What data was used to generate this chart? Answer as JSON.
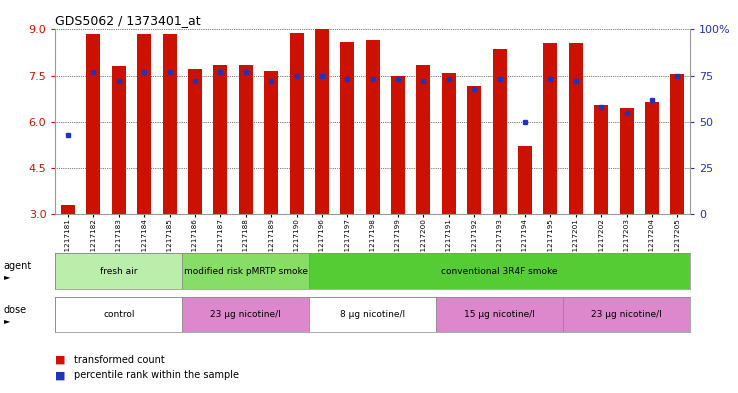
{
  "title": "GDS5062 / 1373401_at",
  "samples": [
    "GSM1217181",
    "GSM1217182",
    "GSM1217183",
    "GSM1217184",
    "GSM1217185",
    "GSM1217186",
    "GSM1217187",
    "GSM1217188",
    "GSM1217189",
    "GSM1217190",
    "GSM1217196",
    "GSM1217197",
    "GSM1217198",
    "GSM1217199",
    "GSM1217200",
    "GSM1217191",
    "GSM1217192",
    "GSM1217193",
    "GSM1217194",
    "GSM1217195",
    "GSM1217201",
    "GSM1217202",
    "GSM1217203",
    "GSM1217204",
    "GSM1217205"
  ],
  "bar_values": [
    3.3,
    8.85,
    7.8,
    8.85,
    8.85,
    7.7,
    7.85,
    7.85,
    7.65,
    8.9,
    9.0,
    8.6,
    8.65,
    7.5,
    7.85,
    7.6,
    7.15,
    8.35,
    5.2,
    8.55,
    8.55,
    6.55,
    6.45,
    6.65,
    7.55
  ],
  "percentile_values_pct": [
    43,
    77,
    72,
    77,
    77,
    72,
    77,
    77,
    72,
    75,
    75,
    73,
    73,
    73,
    72,
    73,
    68,
    73,
    50,
    73,
    72,
    58,
    55,
    62,
    75
  ],
  "ymin": 3.0,
  "ymax": 9.0,
  "yticks": [
    3,
    4.5,
    6,
    7.5,
    9
  ],
  "bar_color": "#cc1100",
  "dot_color": "#2233bb",
  "right_yticks": [
    0,
    25,
    50,
    75,
    100
  ],
  "right_yticklabels": [
    "0",
    "25",
    "50",
    "75",
    "100%"
  ],
  "right_ycolor": "#2233bb",
  "agent_groups": [
    {
      "label": "fresh air",
      "start": 0,
      "end": 5,
      "color": "#bbeeaa"
    },
    {
      "label": "modified risk pMRTP smoke",
      "start": 5,
      "end": 10,
      "color": "#88dd66"
    },
    {
      "label": "conventional 3R4F smoke",
      "start": 10,
      "end": 25,
      "color": "#55cc33"
    }
  ],
  "dose_groups": [
    {
      "label": "control",
      "start": 0,
      "end": 5,
      "color": "#ffffff"
    },
    {
      "label": "23 µg nicotine/l",
      "start": 5,
      "end": 10,
      "color": "#dd88cc"
    },
    {
      "label": "8 µg nicotine/l",
      "start": 10,
      "end": 15,
      "color": "#ffffff"
    },
    {
      "label": "15 µg nicotine/l",
      "start": 15,
      "end": 20,
      "color": "#dd88cc"
    },
    {
      "label": "23 µg nicotine/l",
      "start": 20,
      "end": 25,
      "color": "#dd88cc"
    }
  ],
  "legend_bar_label": "transformed count",
  "legend_dot_label": "percentile rank within the sample",
  "tick_color": "#cc1100",
  "background_color": "#ffffff",
  "bar_width": 0.55
}
